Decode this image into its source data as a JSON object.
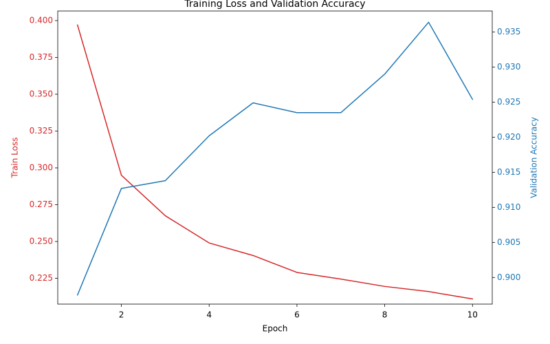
{
  "chart_data": {
    "type": "line",
    "title": "Training Loss and Validation Accuracy",
    "xlabel": "Epoch",
    "ylabel_left": "Train Loss",
    "ylabel_right": "Validation Accuracy",
    "x": [
      1,
      2,
      3,
      4,
      5,
      6,
      7,
      8,
      9,
      10
    ],
    "xlim": [
      0.55,
      10.45
    ],
    "xticks": [
      2,
      4,
      6,
      8,
      10
    ],
    "ylim_left": [
      0.2075,
      0.4065
    ],
    "yticks_left": [
      0.225,
      0.25,
      0.275,
      0.3,
      0.325,
      0.35,
      0.375,
      0.4
    ],
    "ytick_labels_left": [
      "0.225",
      "0.250",
      "0.275",
      "0.300",
      "0.325",
      "0.350",
      "0.375",
      "0.400"
    ],
    "ylim_right": [
      0.8962,
      0.938
    ],
    "yticks_right": [
      0.9,
      0.905,
      0.91,
      0.915,
      0.92,
      0.925,
      0.93,
      0.935
    ],
    "ytick_labels_right": [
      "0.900",
      "0.905",
      "0.910",
      "0.915",
      "0.920",
      "0.925",
      "0.930",
      "0.935"
    ],
    "grid": false,
    "series": [
      {
        "axis": "left",
        "color": "#d62728",
        "values": [
          0.397,
          0.295,
          0.2675,
          0.249,
          0.2405,
          0.229,
          0.2245,
          0.2195,
          0.216,
          0.211
        ]
      },
      {
        "axis": "right",
        "color": "#1f77b4",
        "values": [
          0.8975,
          0.9127,
          0.9138,
          0.9202,
          0.9249,
          0.9235,
          0.9235,
          0.929,
          0.9364,
          0.9254
        ]
      }
    ],
    "colors": {
      "left_axis": "#d62728",
      "right_axis": "#1f77b4",
      "frame": "#000000"
    }
  }
}
